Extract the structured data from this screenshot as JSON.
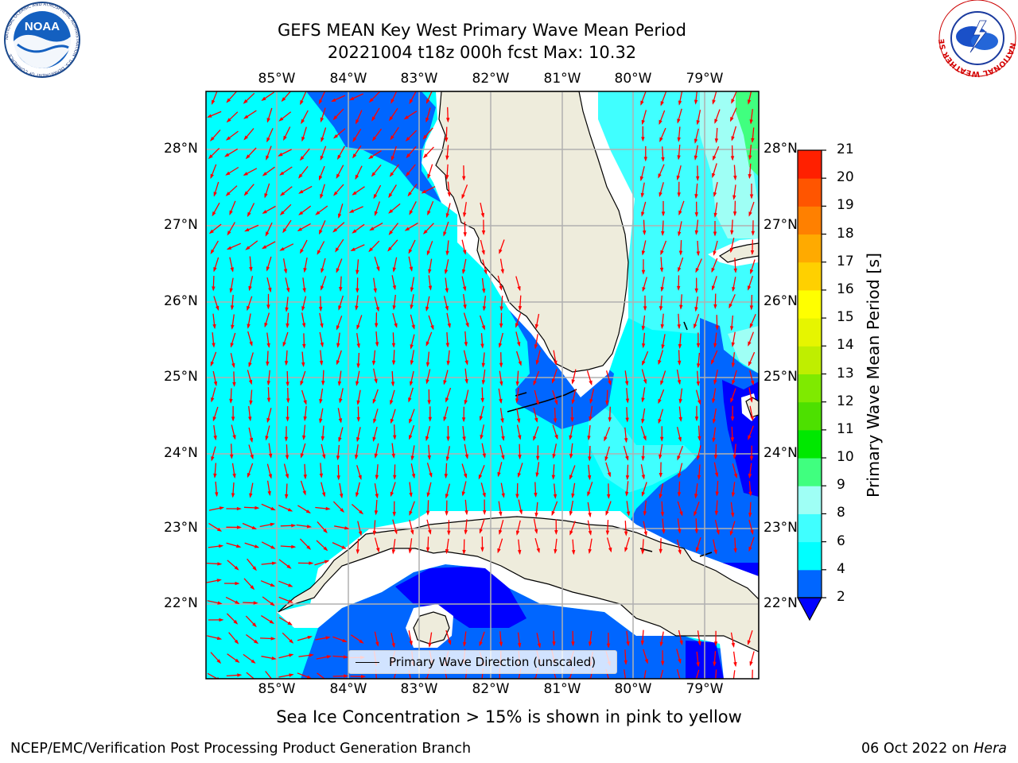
{
  "title_line1": "GEFS MEAN Key West Primary Wave Mean Period",
  "title_line2": "20221004 t18z 000h fcst   Max: 10.32",
  "map": {
    "lon_labels": [
      "85°W",
      "84°W",
      "83°W",
      "82°W",
      "81°W",
      "80°W",
      "79°W"
    ],
    "lat_labels": [
      "28°N",
      "27°N",
      "26°N",
      "25°N",
      "24°N",
      "23°N",
      "22°N"
    ],
    "legend_label": "Primary Wave Direction (unscaled)",
    "ocean_color": "#00ffff",
    "land_color": "#eeecdc",
    "arrow_color": "#ff0000"
  },
  "colorbar": {
    "title": "Primary Wave Mean Period [s]",
    "tick_labels": [
      "2",
      "4",
      "6",
      "8",
      "9",
      "10",
      "11",
      "12",
      "13",
      "14",
      "15",
      "16",
      "17",
      "18",
      "19",
      "20",
      "21"
    ],
    "colors": [
      "#0066ff",
      "#00ffff",
      "#40ffff",
      "#9ffff5",
      "#40ff7f",
      "#00e800",
      "#4de000",
      "#7fea00",
      "#bfee00",
      "#e6f500",
      "#ffff00",
      "#ffd000",
      "#ffaa00",
      "#ff8000",
      "#ff5500",
      "#ff2000"
    ],
    "under_color": "#0000ff"
  },
  "caption": "Sea Ice Concentration > 15% is shown in pink to yellow",
  "footer": {
    "left": "NCEP/EMC/Verification Post Processing Product Generation Branch",
    "right_date": "06 Oct 2022 on ",
    "right_host": "Hera"
  },
  "logos": {
    "noaa_text": "NOAA",
    "noaa_ring_text": "NATIONAL OCEANIC AND ATMOSPHERIC ADMINISTRATION · U.S. DEPARTMENT OF COMMERCE",
    "nws_ring_text": "NATIONAL WEATHER SERVICE"
  }
}
